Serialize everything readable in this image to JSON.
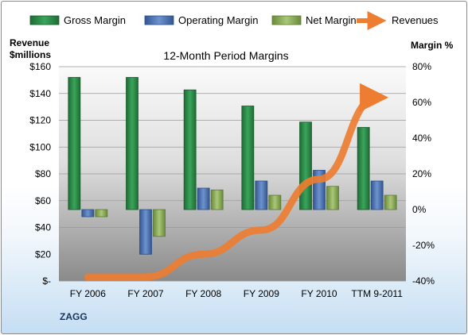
{
  "chart_data": {
    "type": "bar",
    "title": "12-Month Period Margins",
    "company_label": "ZAGG",
    "left_axis": {
      "label_line1": "Revenue",
      "label_line2": "$millions",
      "range": [
        0,
        160
      ],
      "ticks": [
        "$-",
        "$20",
        "$40",
        "$60",
        "$80",
        "$100",
        "$120",
        "$140",
        "$160"
      ]
    },
    "right_axis": {
      "label": "Margin %",
      "range": [
        -40,
        80
      ],
      "ticks": [
        "-40%",
        "-20%",
        "0%",
        "20%",
        "40%",
        "60%",
        "80%"
      ]
    },
    "categories": [
      "FY 2006",
      "FY 2007",
      "FY 2008",
      "FY 2009",
      "FY 2010",
      "TTM 9-2011"
    ],
    "series": [
      {
        "name": "Gross Margin",
        "axis": "right",
        "color": "#2e8b4a",
        "values": [
          74,
          74,
          67,
          58,
          49,
          46
        ]
      },
      {
        "name": "Operating Margin",
        "axis": "right",
        "color": "#4f78b8",
        "values": [
          -4,
          -25,
          12,
          16,
          22,
          16
        ]
      },
      {
        "name": "Net Margin",
        "axis": "right",
        "color": "#8faf5a",
        "values": [
          -4,
          -15,
          11,
          8,
          13,
          8
        ]
      }
    ],
    "revenue_series": {
      "name": "Revenues",
      "axis": "left",
      "color": "#ed7d31",
      "values": [
        3,
        3,
        20,
        38,
        76,
        137
      ]
    },
    "grid": true,
    "legend_position": "top"
  }
}
